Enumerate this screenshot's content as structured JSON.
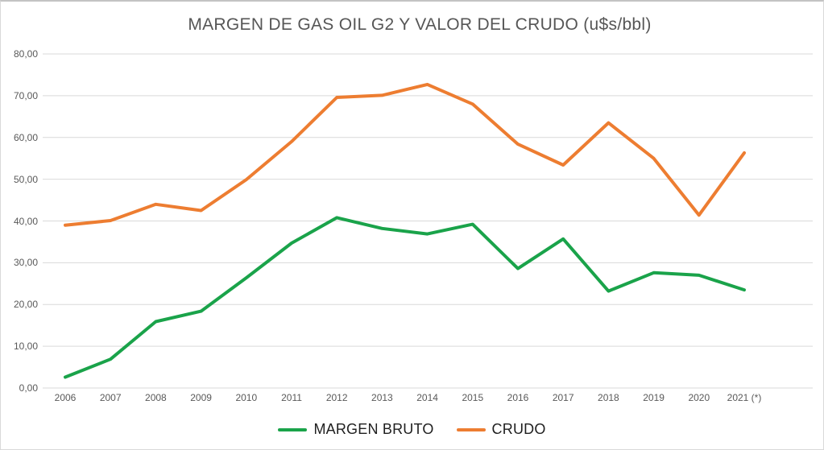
{
  "chart_data": {
    "type": "line",
    "title": "MARGEN DE GAS OIL G2 Y VALOR DEL CRUDO (u$s/bbl)",
    "categories": [
      "2006",
      "2007",
      "2008",
      "2009",
      "2010",
      "2011",
      "2012",
      "2013",
      "2014",
      "2015",
      "2016",
      "2017",
      "2018",
      "2019",
      "2020",
      "2021 (*)"
    ],
    "series": [
      {
        "name": "MARGEN BRUTO",
        "color": "#1aa34a",
        "values": [
          2.6,
          6.9,
          15.9,
          18.4,
          26.4,
          34.7,
          40.8,
          38.2,
          36.9,
          39.2,
          28.6,
          35.7,
          23.2,
          27.6,
          27.0,
          23.5
        ]
      },
      {
        "name": "CRUDO",
        "color": "#ed7d31",
        "values": [
          39.0,
          40.1,
          44.0,
          42.5,
          49.9,
          59.0,
          69.6,
          70.1,
          72.7,
          68.0,
          58.4,
          53.4,
          63.5,
          55.0,
          41.4,
          56.3
        ]
      }
    ],
    "y_ticks": [
      "0,00",
      "10,00",
      "20,00",
      "30,00",
      "40,00",
      "50,00",
      "60,00",
      "70,00",
      "80,00"
    ],
    "ylim": [
      0,
      80
    ],
    "y_step": 10,
    "grid": "horizontal",
    "legend_position": "bottom",
    "colors": {
      "gridline": "#d9d9d9",
      "axis_label": "#595959",
      "title": "#565656",
      "legend_text": "#1f1f1f"
    }
  }
}
